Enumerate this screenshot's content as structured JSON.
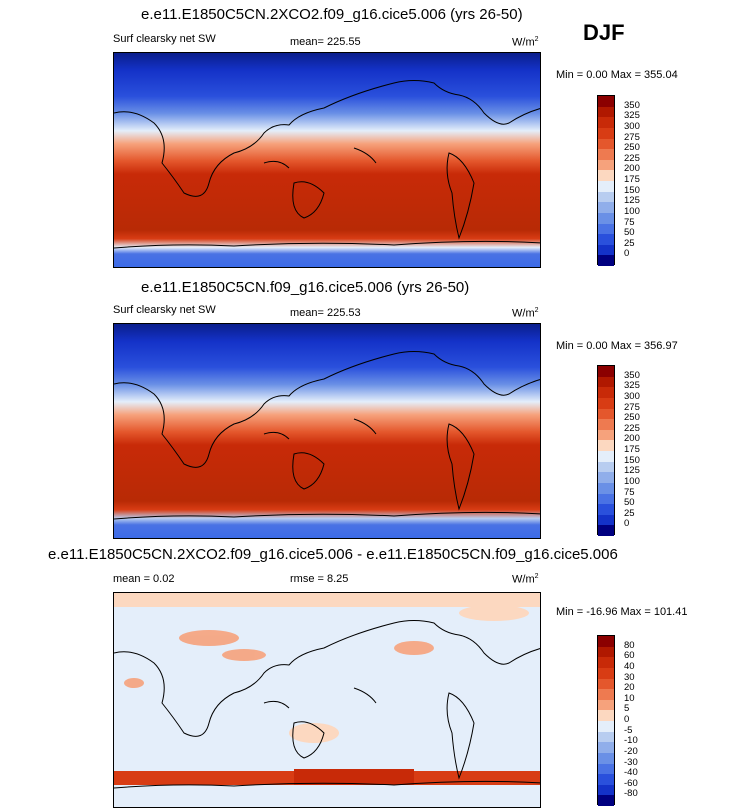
{
  "season": "DJF",
  "panels": [
    {
      "title": "e.e11.E1850C5CN.2XCO2.f09_g16.cice5.006 (yrs 26-50)",
      "left_label": "Surf clearsky net SW",
      "mean": "mean= 225.55",
      "units": "W/m",
      "units_exp": "2",
      "minmax": "Min =   0.00 Max = 355.04"
    },
    {
      "title": "e.e11.E1850C5CN.f09_g16.cice5.006 (yrs 26-50)",
      "left_label": "Surf clearsky net SW",
      "mean": "mean= 225.53",
      "units": "W/m",
      "units_exp": "2",
      "minmax": "Min =   0.00 Max = 356.97"
    },
    {
      "title": "e.e11.E1850C5CN.2XCO2.f09_g16.cice5.006 - e.e11.E1850C5CN.f09_g16.cice5.006",
      "left_label": "mean =   0.02",
      "mean": "rmse =   8.25",
      "units": "W/m",
      "units_exp": "2",
      "minmax": "Min = -16.96 Max = 101.41"
    }
  ],
  "colorbar_abs": {
    "labels": [
      "350",
      "325",
      "300",
      "275",
      "250",
      "225",
      "200",
      "175",
      "150",
      "125",
      "100",
      "75",
      "50",
      "25",
      "0"
    ],
    "colors": [
      "#8b0000",
      "#b01800",
      "#c82a08",
      "#d83c14",
      "#e4572c",
      "#ee7a50",
      "#f6a27c",
      "#fcd8c0",
      "#e4eefa",
      "#b8cdf0",
      "#90aeea",
      "#6a90e6",
      "#4a72e4",
      "#2a50dc",
      "#1432c8",
      "#000080"
    ]
  },
  "colorbar_diff": {
    "labels": [
      "80",
      "60",
      "40",
      "30",
      "20",
      "10",
      "5",
      "0",
      "-5",
      "-10",
      "-20",
      "-30",
      "-40",
      "-60",
      "-80"
    ],
    "colors": [
      "#8b0000",
      "#b01800",
      "#c82a08",
      "#d83c14",
      "#e4572c",
      "#ee7a50",
      "#f6a27c",
      "#fcd8c0",
      "#e4eefa",
      "#b8cdf0",
      "#90aeea",
      "#6a90e6",
      "#4a72e4",
      "#2a50dc",
      "#1432c8",
      "#000080"
    ]
  }
}
